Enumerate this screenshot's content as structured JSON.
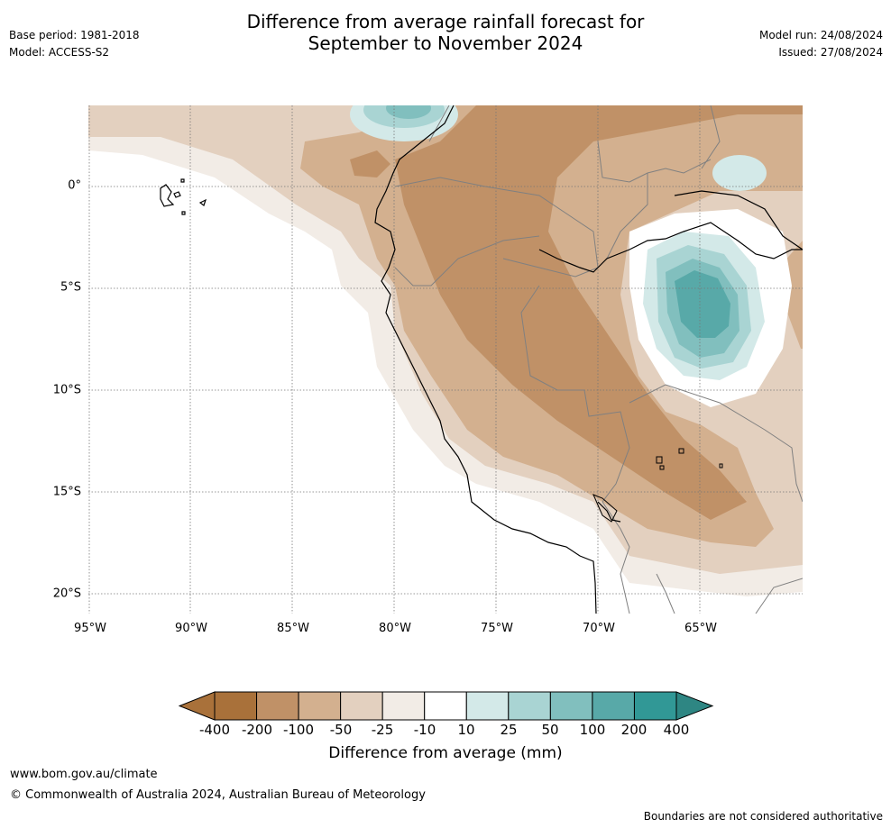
{
  "header": {
    "title_line1": "Difference from average rainfall forecast for",
    "title_line2": "September to November 2024",
    "base_period": "Base period: 1981-2018",
    "model": "Model: ACCESS-S2",
    "model_run": "Model run: 24/08/2024",
    "issued": "Issued: 27/08/2024"
  },
  "map": {
    "region": "western South America",
    "lat_labels": [
      "0°",
      "5°S",
      "10°S",
      "15°S",
      "20°S"
    ],
    "lon_labels": [
      "95°W",
      "90°W",
      "85°W",
      "80°W",
      "75°W",
      "70°W",
      "65°W"
    ],
    "gridlines": true
  },
  "legend": {
    "title": "Difference from average (mm)",
    "ticks": [
      "-400",
      "-200",
      "-100",
      "-50",
      "-25",
      "-10",
      "10",
      "25",
      "50",
      "100",
      "200",
      "400"
    ],
    "colors": [
      "#a9713a",
      "#c09167",
      "#d3b08f",
      "#e3d0bf",
      "#f2ece6",
      "#ffffff",
      "#d3e9e8",
      "#a9d4d3",
      "#81bfbe",
      "#58a9a8",
      "#319896"
    ],
    "extend_low_color": "#a9713a",
    "extend_high_color": "#2e8683"
  },
  "footer": {
    "url": "www.bom.gov.au/climate",
    "copyright": "© Commonwealth of Australia 2024, Australian Bureau of Meteorology",
    "disclaimer": "Boundaries are not considered authoritative"
  }
}
